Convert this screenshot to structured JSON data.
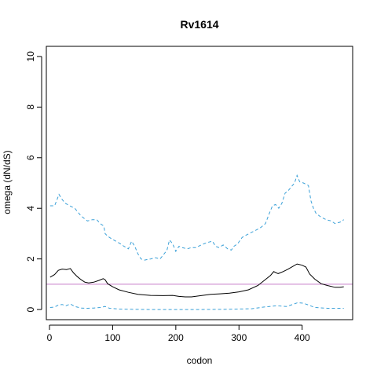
{
  "chart_data": {
    "type": "line",
    "title": "Rv1614",
    "xlabel": "codon",
    "ylabel": "omega (dN/dS)",
    "xlim": [
      -5,
      480
    ],
    "ylim": [
      -0.4,
      10.4
    ],
    "x_ticks": [
      0,
      100,
      200,
      300,
      400
    ],
    "y_ticks": [
      0,
      2,
      4,
      6,
      8,
      10
    ],
    "grid": false,
    "reference_line": {
      "y": 1,
      "color": "#c77cc9"
    },
    "series": [
      {
        "style": "solid",
        "color": "#000000",
        "points": [
          [
            1,
            1.28
          ],
          [
            8,
            1.38
          ],
          [
            14,
            1.55
          ],
          [
            20,
            1.6
          ],
          [
            27,
            1.58
          ],
          [
            33,
            1.62
          ],
          [
            38,
            1.45
          ],
          [
            44,
            1.3
          ],
          [
            50,
            1.18
          ],
          [
            56,
            1.08
          ],
          [
            62,
            1.05
          ],
          [
            70,
            1.08
          ],
          [
            78,
            1.15
          ],
          [
            85,
            1.22
          ],
          [
            88,
            1.18
          ],
          [
            92,
            1.02
          ],
          [
            100,
            0.9
          ],
          [
            110,
            0.78
          ],
          [
            125,
            0.68
          ],
          [
            140,
            0.6
          ],
          [
            160,
            0.56
          ],
          [
            180,
            0.55
          ],
          [
            195,
            0.56
          ],
          [
            205,
            0.52
          ],
          [
            215,
            0.5
          ],
          [
            225,
            0.5
          ],
          [
            240,
            0.55
          ],
          [
            255,
            0.6
          ],
          [
            270,
            0.62
          ],
          [
            285,
            0.65
          ],
          [
            300,
            0.7
          ],
          [
            315,
            0.78
          ],
          [
            330,
            0.95
          ],
          [
            340,
            1.15
          ],
          [
            350,
            1.35
          ],
          [
            355,
            1.5
          ],
          [
            362,
            1.42
          ],
          [
            370,
            1.5
          ],
          [
            378,
            1.6
          ],
          [
            385,
            1.7
          ],
          [
            392,
            1.8
          ],
          [
            400,
            1.75
          ],
          [
            406,
            1.68
          ],
          [
            412,
            1.4
          ],
          [
            420,
            1.2
          ],
          [
            430,
            1.02
          ],
          [
            440,
            0.95
          ],
          [
            452,
            0.88
          ],
          [
            460,
            0.88
          ],
          [
            466,
            0.9
          ]
        ]
      },
      {
        "style": "dashed-upper",
        "color": "#3aa0d8",
        "points": [
          [
            1,
            4.1
          ],
          [
            8,
            4.1
          ],
          [
            12,
            4.35
          ],
          [
            15,
            4.55
          ],
          [
            20,
            4.35
          ],
          [
            25,
            4.2
          ],
          [
            32,
            4.1
          ],
          [
            40,
            4.0
          ],
          [
            45,
            3.85
          ],
          [
            50,
            3.7
          ],
          [
            55,
            3.6
          ],
          [
            60,
            3.5
          ],
          [
            68,
            3.55
          ],
          [
            75,
            3.55
          ],
          [
            80,
            3.4
          ],
          [
            86,
            3.3
          ],
          [
            88,
            3.0
          ],
          [
            92,
            2.9
          ],
          [
            98,
            2.8
          ],
          [
            105,
            2.7
          ],
          [
            112,
            2.6
          ],
          [
            118,
            2.5
          ],
          [
            125,
            2.4
          ],
          [
            130,
            2.7
          ],
          [
            135,
            2.5
          ],
          [
            140,
            2.2
          ],
          [
            145,
            2.0
          ],
          [
            150,
            1.95
          ],
          [
            155,
            1.98
          ],
          [
            160,
            2.0
          ],
          [
            168,
            2.05
          ],
          [
            175,
            2.0
          ],
          [
            180,
            2.15
          ],
          [
            186,
            2.35
          ],
          [
            190,
            2.75
          ],
          [
            195,
            2.6
          ],
          [
            200,
            2.3
          ],
          [
            205,
            2.5
          ],
          [
            210,
            2.45
          ],
          [
            218,
            2.4
          ],
          [
            225,
            2.45
          ],
          [
            232,
            2.45
          ],
          [
            240,
            2.55
          ],
          [
            250,
            2.65
          ],
          [
            258,
            2.7
          ],
          [
            263,
            2.5
          ],
          [
            268,
            2.45
          ],
          [
            275,
            2.55
          ],
          [
            282,
            2.4
          ],
          [
            288,
            2.35
          ],
          [
            292,
            2.5
          ],
          [
            298,
            2.6
          ],
          [
            305,
            2.85
          ],
          [
            312,
            2.95
          ],
          [
            320,
            3.05
          ],
          [
            328,
            3.15
          ],
          [
            335,
            3.25
          ],
          [
            342,
            3.4
          ],
          [
            348,
            3.8
          ],
          [
            353,
            4.1
          ],
          [
            358,
            4.15
          ],
          [
            363,
            4.0
          ],
          [
            368,
            4.2
          ],
          [
            373,
            4.6
          ],
          [
            378,
            4.7
          ],
          [
            383,
            4.85
          ],
          [
            388,
            5.0
          ],
          [
            392,
            5.3
          ],
          [
            396,
            5.05
          ],
          [
            402,
            5.0
          ],
          [
            410,
            4.9
          ],
          [
            414,
            4.3
          ],
          [
            418,
            4.0
          ],
          [
            422,
            3.8
          ],
          [
            430,
            3.65
          ],
          [
            438,
            3.55
          ],
          [
            446,
            3.5
          ],
          [
            452,
            3.4
          ],
          [
            460,
            3.45
          ],
          [
            466,
            3.55
          ]
        ]
      },
      {
        "style": "dashed-lower",
        "color": "#3aa0d8",
        "points": [
          [
            1,
            0.08
          ],
          [
            8,
            0.1
          ],
          [
            14,
            0.18
          ],
          [
            20,
            0.2
          ],
          [
            26,
            0.15
          ],
          [
            33,
            0.22
          ],
          [
            40,
            0.12
          ],
          [
            50,
            0.06
          ],
          [
            60,
            0.05
          ],
          [
            70,
            0.06
          ],
          [
            80,
            0.08
          ],
          [
            88,
            0.12
          ],
          [
            95,
            0.05
          ],
          [
            110,
            0.02
          ],
          [
            130,
            0.01
          ],
          [
            160,
            0.0
          ],
          [
            200,
            0.0
          ],
          [
            240,
            0.0
          ],
          [
            280,
            0.01
          ],
          [
            320,
            0.03
          ],
          [
            340,
            0.1
          ],
          [
            360,
            0.15
          ],
          [
            375,
            0.12
          ],
          [
            385,
            0.2
          ],
          [
            393,
            0.27
          ],
          [
            402,
            0.25
          ],
          [
            410,
            0.18
          ],
          [
            420,
            0.08
          ],
          [
            440,
            0.05
          ],
          [
            466,
            0.05
          ]
        ]
      }
    ]
  }
}
